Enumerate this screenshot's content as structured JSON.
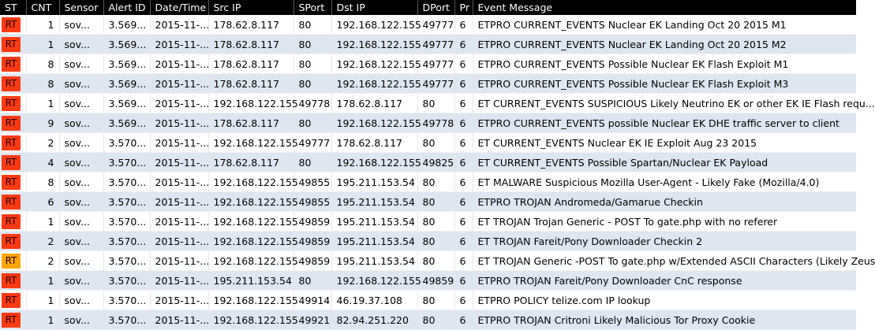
{
  "columns": [
    "ST",
    "CNT",
    "Sensor",
    "Alert ID",
    "Date/Time",
    "Src IP",
    "SPort",
    "Dst IP",
    "DPort",
    "Pr",
    "Event Message"
  ],
  "status_colors": {
    "red": "#ff3b14",
    "amber": "#ffa500"
  },
  "rows": [
    {
      "st": "RT",
      "color": "#ff3b14",
      "cnt": "1",
      "sensor": "sov...",
      "alert_id": "3.569...",
      "datetime": "2015-11-...",
      "src_ip": "178.62.8.117",
      "sport": "80",
      "dst_ip": "192.168.122.155",
      "dport": "49777",
      "pr": "6",
      "msg": "ETPRO CURRENT_EVENTS Nuclear EK Landing Oct 20 2015 M1"
    },
    {
      "st": "RT",
      "color": "#ff3b14",
      "cnt": "1",
      "sensor": "sov...",
      "alert_id": "3.569...",
      "datetime": "2015-11-...",
      "src_ip": "178.62.8.117",
      "sport": "80",
      "dst_ip": "192.168.122.155",
      "dport": "49777",
      "pr": "6",
      "msg": "ETPRO CURRENT_EVENTS Nuclear EK Landing Oct 20 2015 M2"
    },
    {
      "st": "RT",
      "color": "#ff3b14",
      "cnt": "8",
      "sensor": "sov...",
      "alert_id": "3.569...",
      "datetime": "2015-11-...",
      "src_ip": "178.62.8.117",
      "sport": "80",
      "dst_ip": "192.168.122.155",
      "dport": "49777",
      "pr": "6",
      "msg": "ETPRO CURRENT_EVENTS Possible Nuclear EK Flash Exploit M1"
    },
    {
      "st": "RT",
      "color": "#ff3b14",
      "cnt": "8",
      "sensor": "sov...",
      "alert_id": "3.569...",
      "datetime": "2015-11-...",
      "src_ip": "178.62.8.117",
      "sport": "80",
      "dst_ip": "192.168.122.155",
      "dport": "49777",
      "pr": "6",
      "msg": "ETPRO CURRENT_EVENTS Possible Nuclear EK Flash Exploit M3"
    },
    {
      "st": "RT",
      "color": "#ff3b14",
      "cnt": "1",
      "sensor": "sov...",
      "alert_id": "3.569...",
      "datetime": "2015-11-...",
      "src_ip": "192.168.122.155",
      "sport": "49778",
      "dst_ip": "178.62.8.117",
      "dport": "80",
      "pr": "6",
      "msg": "ET CURRENT_EVENTS SUSPICIOUS Likely Neutrino EK or other EK IE Flash requ..."
    },
    {
      "st": "RT",
      "color": "#ff3b14",
      "cnt": "9",
      "sensor": "sov...",
      "alert_id": "3.569...",
      "datetime": "2015-11-...",
      "src_ip": "178.62.8.117",
      "sport": "80",
      "dst_ip": "192.168.122.155",
      "dport": "49778",
      "pr": "6",
      "msg": "ETPRO CURRENT_EVENTS possible Nuclear EK DHE traffic server to client"
    },
    {
      "st": "RT",
      "color": "#ff3b14",
      "cnt": "2",
      "sensor": "sov...",
      "alert_id": "3.570...",
      "datetime": "2015-11-...",
      "src_ip": "192.168.122.155",
      "sport": "49777",
      "dst_ip": "178.62.8.117",
      "dport": "80",
      "pr": "6",
      "msg": "ET CURRENT_EVENTS Nuclear EK IE Exploit Aug 23 2015"
    },
    {
      "st": "RT",
      "color": "#ff3b14",
      "cnt": "4",
      "sensor": "sov...",
      "alert_id": "3.570...",
      "datetime": "2015-11-...",
      "src_ip": "178.62.8.117",
      "sport": "80",
      "dst_ip": "192.168.122.155",
      "dport": "49825",
      "pr": "6",
      "msg": "ET CURRENT_EVENTS Possible Spartan/Nuclear EK Payload"
    },
    {
      "st": "RT",
      "color": "#ff3b14",
      "cnt": "8",
      "sensor": "sov...",
      "alert_id": "3.570...",
      "datetime": "2015-11-...",
      "src_ip": "192.168.122.155",
      "sport": "49855",
      "dst_ip": "195.211.153.54",
      "dport": "80",
      "pr": "6",
      "msg": "ET MALWARE Suspicious Mozilla User-Agent - Likely Fake (Mozilla/4.0)"
    },
    {
      "st": "RT",
      "color": "#ff3b14",
      "cnt": "6",
      "sensor": "sov...",
      "alert_id": "3.570...",
      "datetime": "2015-11-...",
      "src_ip": "192.168.122.155",
      "sport": "49855",
      "dst_ip": "195.211.153.54",
      "dport": "80",
      "pr": "6",
      "msg": "ETPRO TROJAN Andromeda/Gamarue Checkin"
    },
    {
      "st": "RT",
      "color": "#ff3b14",
      "cnt": "1",
      "sensor": "sov...",
      "alert_id": "3.570...",
      "datetime": "2015-11-...",
      "src_ip": "192.168.122.155",
      "sport": "49859",
      "dst_ip": "195.211.153.54",
      "dport": "80",
      "pr": "6",
      "msg": "ET TROJAN Trojan Generic - POST To gate.php with no referer"
    },
    {
      "st": "RT",
      "color": "#ff3b14",
      "cnt": "2",
      "sensor": "sov...",
      "alert_id": "3.570...",
      "datetime": "2015-11-...",
      "src_ip": "192.168.122.155",
      "sport": "49859",
      "dst_ip": "195.211.153.54",
      "dport": "80",
      "pr": "6",
      "msg": "ET TROJAN Fareit/Pony Downloader Checkin 2"
    },
    {
      "st": "RT",
      "color": "#ffa500",
      "cnt": "2",
      "sensor": "sov...",
      "alert_id": "3.570...",
      "datetime": "2015-11-...",
      "src_ip": "192.168.122.155",
      "sport": "49859",
      "dst_ip": "195.211.153.54",
      "dport": "80",
      "pr": "6",
      "msg": "ET TROJAN Generic -POST To gate.php w/Extended ASCII Characters (Likely Zeus"
    },
    {
      "st": "RT",
      "color": "#ff3b14",
      "cnt": "1",
      "sensor": "sov...",
      "alert_id": "3.570...",
      "datetime": "2015-11-...",
      "src_ip": "195.211.153.54",
      "sport": "80",
      "dst_ip": "192.168.122.155",
      "dport": "49859",
      "pr": "6",
      "msg": "ETPRO TROJAN Fareit/Pony Downloader CnC response"
    },
    {
      "st": "RT",
      "color": "#ff3b14",
      "cnt": "1",
      "sensor": "sov...",
      "alert_id": "3.570...",
      "datetime": "2015-11-...",
      "src_ip": "192.168.122.155",
      "sport": "49914",
      "dst_ip": "46.19.37.108",
      "dport": "80",
      "pr": "6",
      "msg": "ETPRO POLICY telize.com IP lookup"
    },
    {
      "st": "RT",
      "color": "#ff3b14",
      "cnt": "1",
      "sensor": "sov...",
      "alert_id": "3.570...",
      "datetime": "2015-11-...",
      "src_ip": "192.168.122.155",
      "sport": "49921",
      "dst_ip": "82.94.251.220",
      "dport": "80",
      "pr": "6",
      "msg": "ETPRO TROJAN Critroni Likely Malicious Tor Proxy Cookie"
    }
  ]
}
